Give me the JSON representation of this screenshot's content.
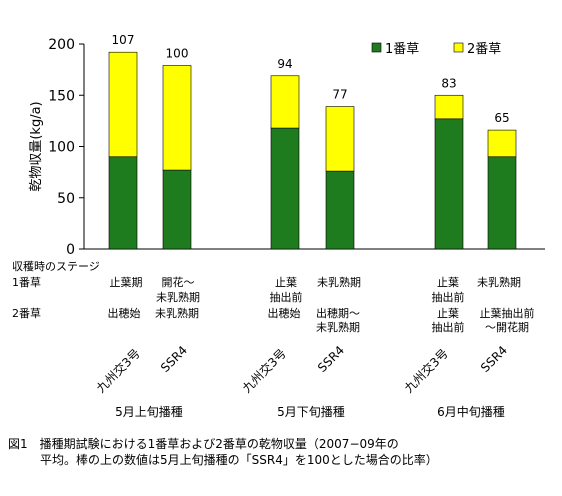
{
  "chart_data": {
    "type": "bar",
    "stacked": true,
    "ylabel": "乾物収量(kg/a)",
    "ylim": [
      0,
      200
    ],
    "yticks": [
      0,
      50,
      100,
      150,
      200
    ],
    "grid": false,
    "legend_position": "top-right",
    "categories": [
      "九州交3号",
      "SSR4",
      "九州交3号",
      "SSR4",
      "九州交3号",
      "SSR4"
    ],
    "groups": [
      "5月上旬播種",
      "5月下旬播種",
      "6月中旬播種"
    ],
    "series": [
      {
        "name": "1番草",
        "color": "#1E7B1E",
        "values": [
          90,
          77,
          118,
          76,
          127,
          90
        ]
      },
      {
        "name": "2番草",
        "color": "#FFFF00",
        "values": [
          102,
          102,
          51,
          63,
          23,
          26
        ]
      }
    ],
    "bar_labels": [
      "107",
      "100",
      "94",
      "77",
      "83",
      "65"
    ]
  },
  "stages": {
    "header": "収穫時のステージ",
    "row1_label": "1番草",
    "row2_label": "2番草",
    "row1": [
      "止葉期",
      "開花～",
      "止葉",
      "未乳熟期",
      "止葉",
      "未乳熟期"
    ],
    "row1b": [
      "",
      "未乳熟期",
      "抽出前",
      "",
      "抽出前",
      ""
    ],
    "row2": [
      "出穂始",
      "未乳熟期",
      "出穂始",
      "出穂期～",
      "止葉",
      "止葉抽出前"
    ],
    "row2b": [
      "",
      "",
      "",
      "未乳熟期",
      "抽出前",
      "～開花期"
    ]
  },
  "caption": {
    "line1": "図1　播種期試験における1番草および2番草の乾物収量（2007−09年の",
    "line2": "平均。棒の上の数値は5月上旬播種の「SSR4」を100とした場合の比率）"
  }
}
